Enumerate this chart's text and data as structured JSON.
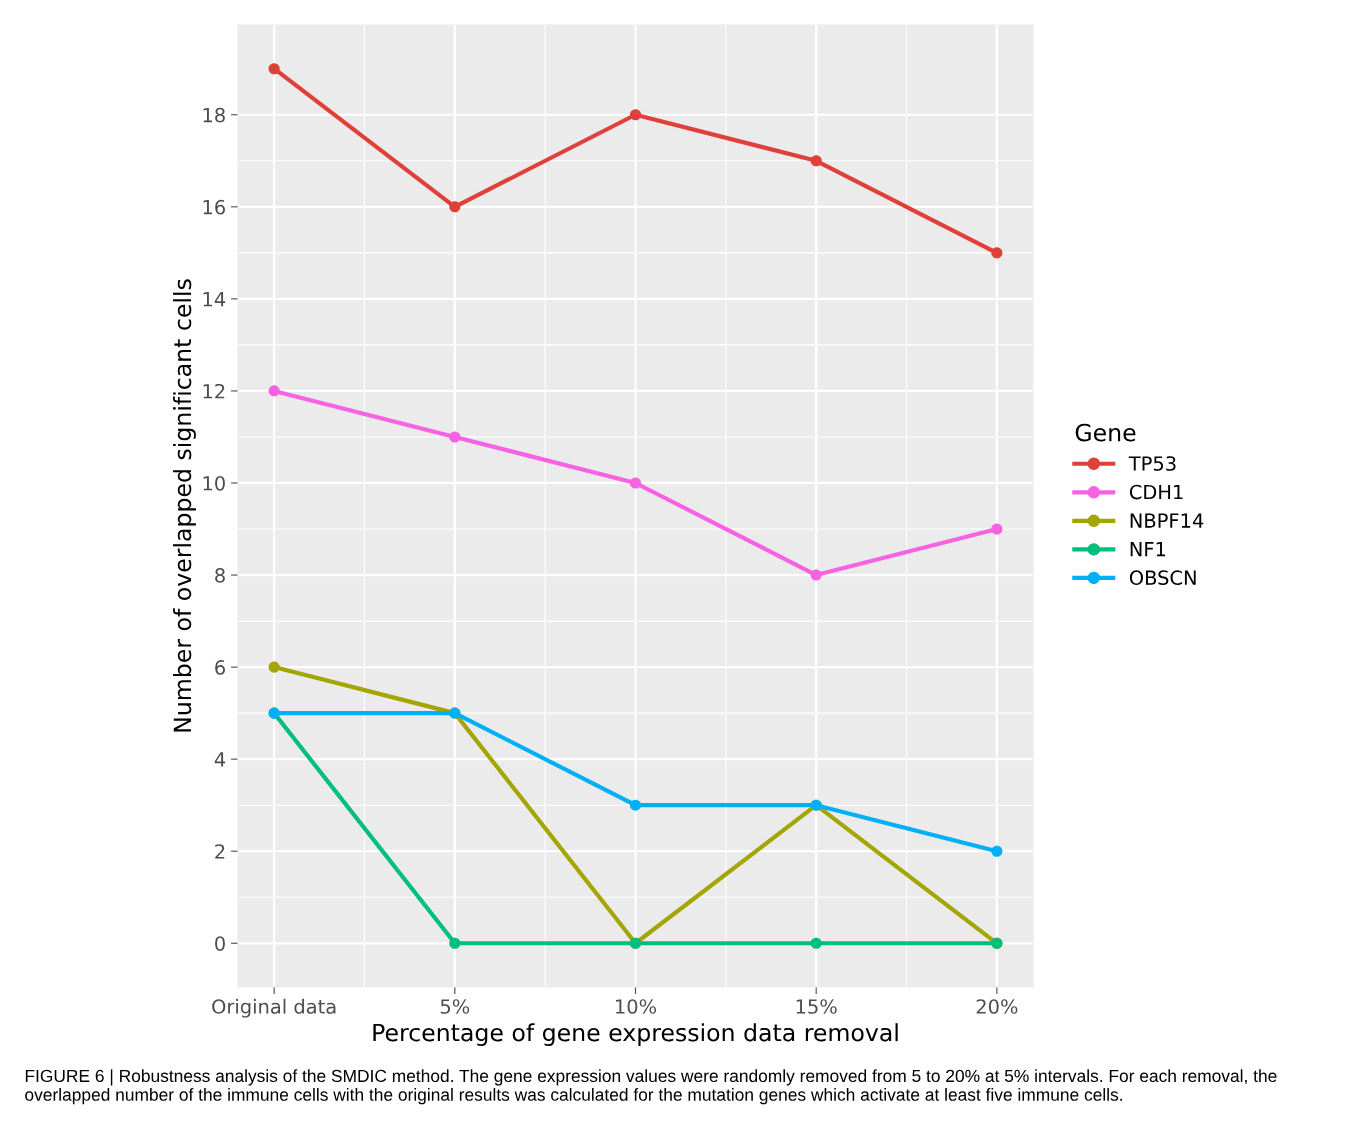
{
  "chart_data": {
    "type": "line",
    "xlabel": "Percentage of gene expression data removal",
    "ylabel": "Number of overlapped significant cells",
    "legend_title": "Gene",
    "categories": [
      "Original data",
      "5%",
      "10%",
      "15%",
      "20%"
    ],
    "series": [
      {
        "name": "TP53",
        "color": "#e0403a",
        "values": [
          19,
          16,
          18,
          17,
          15
        ]
      },
      {
        "name": "CDH1",
        "color": "#f563e3",
        "values": [
          12,
          11,
          10,
          8,
          9
        ]
      },
      {
        "name": "NBPF14",
        "color": "#a3a500",
        "values": [
          6,
          5,
          0,
          3,
          0
        ]
      },
      {
        "name": "NF1",
        "color": "#00bf7d",
        "values": [
          5,
          0,
          0,
          0,
          0
        ]
      },
      {
        "name": "OBSCN",
        "color": "#00b0f6",
        "values": [
          5,
          5,
          3,
          3,
          2
        ]
      }
    ],
    "ylim": [
      -0.95,
      19.95
    ],
    "yticks": [
      0,
      2,
      4,
      6,
      8,
      10,
      12,
      14,
      16,
      18
    ],
    "grid": true,
    "legend": "right",
    "marker": "circle",
    "line_style": "solid",
    "annotations": [
      "FIGURE 6 | Robustness analysis of the SMDIC method. The gene expression values were randomly removed from 5 to 20% at 5% intervals. For each removal, the overlapped number of the immune cells with the original results was calculated for the mutation genes which activate at least five immune cells."
    ]
  }
}
